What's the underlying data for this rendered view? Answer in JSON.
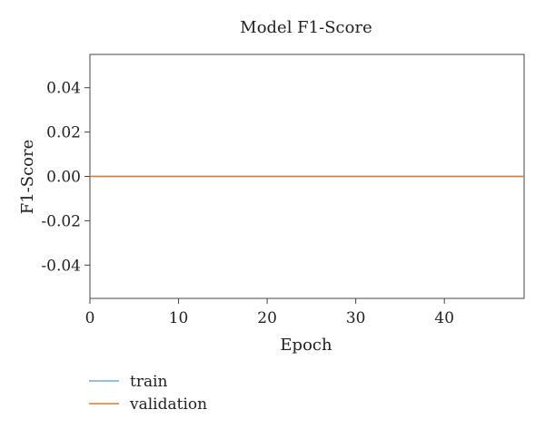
{
  "chart_data": {
    "type": "line",
    "title": "Model F1-Score",
    "xlabel": "Epoch",
    "ylabel": "F1-Score",
    "xlim": [
      0,
      49
    ],
    "ylim": [
      -0.055,
      0.055
    ],
    "xticks": [
      0,
      10,
      20,
      30,
      40
    ],
    "xtick_labels": [
      "0",
      "10",
      "20",
      "30",
      "40"
    ],
    "yticks": [
      0.04,
      0.02,
      0.0,
      -0.02,
      -0.04
    ],
    "ytick_labels": [
      "0.04",
      "0.02",
      "0.00",
      "-0.02",
      "-0.04"
    ],
    "grid": false,
    "legend_position": "bottom-left",
    "series": [
      {
        "name": "train",
        "color": "#6fa8dc",
        "x": [
          0,
          1,
          2,
          3,
          4,
          5,
          6,
          7,
          8,
          9,
          10,
          11,
          12,
          13,
          14,
          15,
          16,
          17,
          18,
          19,
          20,
          21,
          22,
          23,
          24,
          25,
          26,
          27,
          28,
          29,
          30,
          31,
          32,
          33,
          34,
          35,
          36,
          37,
          38,
          39,
          40,
          41,
          42,
          43,
          44,
          45,
          46,
          47,
          48,
          49
        ],
        "values": [
          0,
          0,
          0,
          0,
          0,
          0,
          0,
          0,
          0,
          0,
          0,
          0,
          0,
          0,
          0,
          0,
          0,
          0,
          0,
          0,
          0,
          0,
          0,
          0,
          0,
          0,
          0,
          0,
          0,
          0,
          0,
          0,
          0,
          0,
          0,
          0,
          0,
          0,
          0,
          0,
          0,
          0,
          0,
          0,
          0,
          0,
          0,
          0,
          0,
          0
        ]
      },
      {
        "name": "validation",
        "color": "#e07b28",
        "x": [
          0,
          1,
          2,
          3,
          4,
          5,
          6,
          7,
          8,
          9,
          10,
          11,
          12,
          13,
          14,
          15,
          16,
          17,
          18,
          19,
          20,
          21,
          22,
          23,
          24,
          25,
          26,
          27,
          28,
          29,
          30,
          31,
          32,
          33,
          34,
          35,
          36,
          37,
          38,
          39,
          40,
          41,
          42,
          43,
          44,
          45,
          46,
          47,
          48,
          49
        ],
        "values": [
          0,
          0,
          0,
          0,
          0,
          0,
          0,
          0,
          0,
          0,
          0,
          0,
          0,
          0,
          0,
          0,
          0,
          0,
          0,
          0,
          0,
          0,
          0,
          0,
          0,
          0,
          0,
          0,
          0,
          0,
          0,
          0,
          0,
          0,
          0,
          0,
          0,
          0,
          0,
          0,
          0,
          0,
          0,
          0,
          0,
          0,
          0,
          0,
          0,
          0
        ]
      }
    ]
  }
}
